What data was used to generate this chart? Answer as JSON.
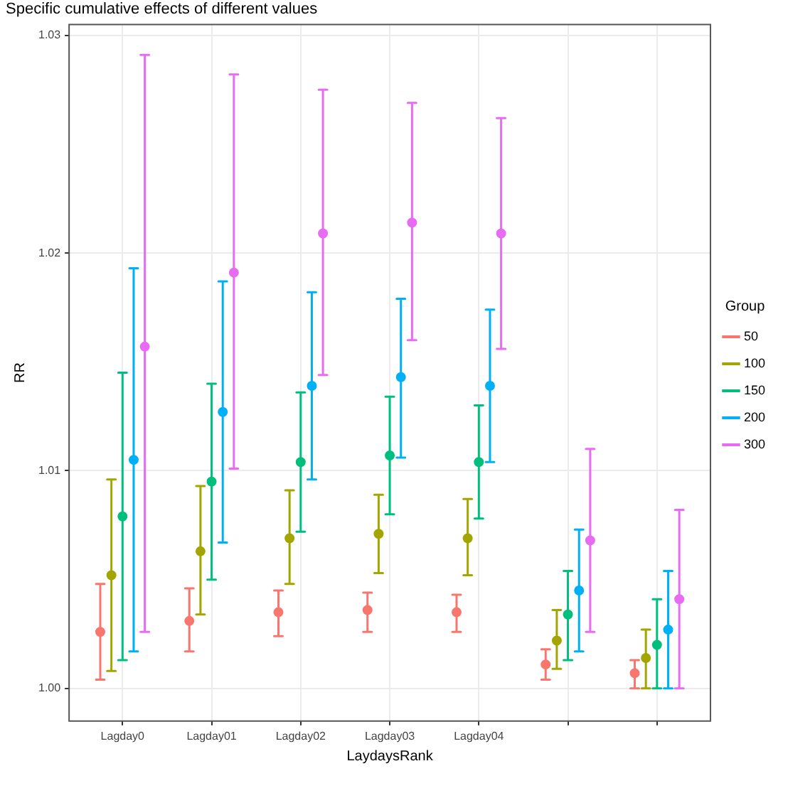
{
  "chart_data": {
    "type": "scatter",
    "title": "Specific cumulative effects of different values",
    "xlabel": "LaydaysRank",
    "ylabel": "RR",
    "legend_title": "Group",
    "legend": "right",
    "grid": true,
    "marker": "circle",
    "categories": [
      "Lagday0",
      "Lagday01",
      "Lagday02",
      "Lagday03",
      "Lagday04",
      null,
      null
    ],
    "ylim": [
      0.9985,
      1.0305
    ],
    "yticks": [
      {
        "value": 1,
        "label": "1.00"
      },
      {
        "value": 1.01,
        "label": "1.01"
      },
      {
        "value": 1.02,
        "label": "1.02"
      },
      {
        "value": 1.03,
        "label": "1.03"
      }
    ],
    "series": [
      {
        "name": "50",
        "color": "#f8766d",
        "values": [
          1.0026,
          1.0031,
          1.0035,
          1.0036,
          1.0035,
          1.0011,
          1.0007
        ],
        "errors": [
          [
            1.0004,
            1.0048
          ],
          [
            1.0017,
            1.0046
          ],
          [
            1.0024,
            1.0045
          ],
          [
            1.0026,
            1.0044
          ],
          [
            1.0026,
            1.0043
          ],
          [
            1.0004,
            1.0018
          ],
          [
            1.0,
            1.0013
          ]
        ]
      },
      {
        "name": "100",
        "color": "#a3a500",
        "values": [
          1.0052,
          1.0063,
          1.0069,
          1.0071,
          1.0069,
          1.0022,
          1.0014
        ],
        "errors": [
          [
            1.0008,
            1.0096
          ],
          [
            1.0034,
            1.0093
          ],
          [
            1.0048,
            1.0091
          ],
          [
            1.0053,
            1.0089
          ],
          [
            1.0052,
            1.0087
          ],
          [
            1.0009,
            1.0036
          ],
          [
            1.0,
            1.0027
          ]
        ]
      },
      {
        "name": "150",
        "color": "#00bf7d",
        "values": [
          1.0079,
          1.0095,
          1.0104,
          1.0107,
          1.0104,
          1.0034,
          1.002
        ],
        "errors": [
          [
            1.0013,
            1.0145
          ],
          [
            1.005,
            1.014
          ],
          [
            1.0072,
            1.0136
          ],
          [
            1.008,
            1.0134
          ],
          [
            1.0078,
            1.013
          ],
          [
            1.0013,
            1.0054
          ],
          [
            1.0,
            1.0041
          ]
        ]
      },
      {
        "name": "200",
        "color": "#00b0f6",
        "values": [
          1.0105,
          1.0127,
          1.0139,
          1.0143,
          1.0139,
          1.0045,
          1.0027
        ],
        "errors": [
          [
            1.0017,
            1.0193
          ],
          [
            1.0067,
            1.0187
          ],
          [
            1.0096,
            1.0182
          ],
          [
            1.0106,
            1.0179
          ],
          [
            1.0104,
            1.0174
          ],
          [
            1.0017,
            1.0073
          ],
          [
            1.0,
            1.0054
          ]
        ]
      },
      {
        "name": "300",
        "color": "#e76bf3",
        "values": [
          1.0157,
          1.0191,
          1.0209,
          1.0214,
          1.0209,
          1.0068,
          1.0041
        ],
        "errors": [
          [
            1.0026,
            1.0291
          ],
          [
            1.0101,
            1.0282
          ],
          [
            1.0144,
            1.0275
          ],
          [
            1.016,
            1.0269
          ],
          [
            1.0156,
            1.0262
          ],
          [
            1.0026,
            1.011
          ],
          [
            1.0,
            1.0082
          ]
        ]
      }
    ]
  }
}
